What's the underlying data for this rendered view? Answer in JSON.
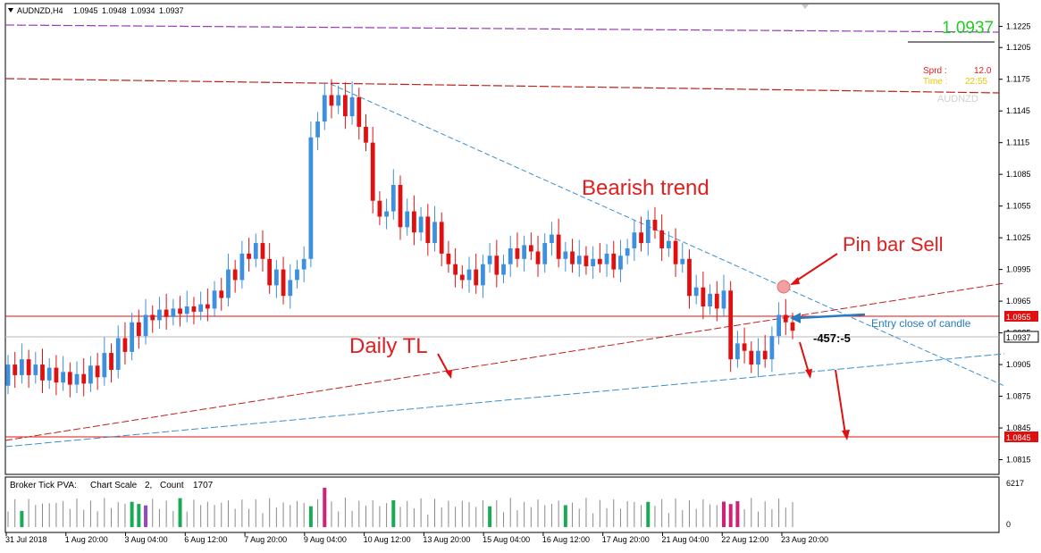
{
  "header": {
    "symbol_label": "AUDNZD,H4",
    "ohlc": [
      "1.0945",
      "1.0948",
      "1.0934",
      "1.0937"
    ]
  },
  "overlay": {
    "current_price": "1.0937",
    "spread_label": "Sprd :",
    "spread_value": "12.0",
    "time_label": "Time :",
    "time_value": "22:55",
    "watermark": "AUDNZD"
  },
  "annotations": {
    "bearish_trend": "Bearish trend",
    "pin_bar_sell": "Pin bar Sell",
    "daily_tl": "Daily TL",
    "entry_note": "Entry close of candle",
    "pips": "-457:-5"
  },
  "indicator": {
    "name": "Broker Tick PVA:",
    "scale_label": "Chart Scale",
    "scale_value": "2,",
    "count_label": "Count",
    "count_value": "1707",
    "max_label": "6217",
    "zero_label": "0"
  },
  "price_axis": {
    "ticks": [
      "1.1225",
      "1.1205",
      "1.1175",
      "1.1145",
      "1.1115",
      "1.1085",
      "1.1055",
      "1.1025",
      "1.0995",
      "1.0965",
      "1.0935",
      "1.0905",
      "1.0875",
      "1.0845",
      "1.0815"
    ],
    "marker_high": "1.0955",
    "marker_current": "1.0937",
    "marker_low": "1.0845"
  },
  "time_axis": {
    "labels": [
      "31 Jul 2018",
      "1 Aug 20:00",
      "3 Aug 04:00",
      "6 Aug 12:00",
      "7 Aug 20:00",
      "9 Aug 04:00",
      "10 Aug 12:00",
      "13 Aug 20:00",
      "15 Aug 04:00",
      "16 Aug 12:00",
      "17 Aug 20:00",
      "21 Aug 04:00",
      "22 Aug 12:00",
      "23 Aug 20:00"
    ]
  },
  "colors": {
    "bull": "#3d8fe0",
    "bear": "#e01010",
    "trend_red": "#c0201a",
    "trend_blue": "#3a8fd0",
    "purple": "#9a3ab8",
    "text_red": "#e02020",
    "text_blue": "#2a7ac0",
    "green": "#22cc22",
    "yellow": "#e8c800"
  },
  "chart_data": {
    "type": "candlestick",
    "title": "AUDNZD,H4",
    "ylim": [
      1.0807,
      1.1239
    ],
    "reference_lines": {
      "resistance_purple": 1.1215,
      "resistance_red": 1.1168,
      "entry_level": 1.0955,
      "current": 1.0937,
      "target": 1.0845
    },
    "trendlines": [
      {
        "name": "Bearish trend",
        "from": [
          0,
          1.1168
        ],
        "to": [
          1,
          1.0912
        ]
      },
      {
        "name": "Daily TL",
        "from": [
          0,
          1.0842
        ],
        "to": [
          1,
          1.0982
        ]
      }
    ],
    "candles": [
      [
        1.0885,
        1.0905
      ],
      [
        1.0905,
        1.0895
      ],
      [
        1.0895,
        1.091
      ],
      [
        1.091,
        1.0895
      ],
      [
        1.0895,
        1.0905
      ],
      [
        1.0905,
        1.089
      ],
      [
        1.089,
        1.0902
      ],
      [
        1.0902,
        1.0888
      ],
      [
        1.0888,
        1.0898
      ],
      [
        1.0898,
        1.0886
      ],
      [
        1.0886,
        1.0896
      ],
      [
        1.0896,
        1.0887
      ],
      [
        1.0887,
        1.0904
      ],
      [
        1.0904,
        1.0893
      ],
      [
        1.0893,
        1.0916
      ],
      [
        1.0916,
        1.09
      ],
      [
        1.09,
        1.093
      ],
      [
        1.093,
        1.0917
      ],
      [
        1.0917,
        1.0945
      ],
      [
        1.0945,
        1.0932
      ],
      [
        1.0932,
        1.0952
      ],
      [
        1.0952,
        1.0947
      ],
      [
        1.0947,
        1.0957
      ],
      [
        1.0957,
        1.095
      ],
      [
        1.095,
        1.0958
      ],
      [
        1.0958,
        1.0953
      ],
      [
        1.0953,
        1.096
      ],
      [
        1.096,
        1.0955
      ],
      [
        1.0955,
        1.0962
      ],
      [
        1.0962,
        1.0958
      ],
      [
        1.0958,
        1.0975
      ],
      [
        1.0975,
        1.0968
      ],
      [
        1.0968,
        1.0995
      ],
      [
        1.0995,
        1.0985
      ],
      [
        1.0985,
        1.101
      ],
      [
        1.101,
        1.1005
      ],
      [
        1.1005,
        1.102
      ],
      [
        1.102,
        1.1005
      ],
      [
        1.1005,
        1.098
      ],
      [
        1.098,
        1.0995
      ],
      [
        1.0995,
        1.097
      ],
      [
        1.097,
        1.0985
      ],
      [
        1.0985,
        1.0995
      ],
      [
        1.0995,
        1.1005
      ],
      [
        1.1005,
        1.112
      ],
      [
        1.112,
        1.1135
      ],
      [
        1.1135,
        1.116
      ],
      [
        1.116,
        1.115
      ],
      [
        1.115,
        1.116
      ],
      [
        1.116,
        1.114
      ],
      [
        1.114,
        1.1158
      ],
      [
        1.1158,
        1.113
      ],
      [
        1.113,
        1.1115
      ],
      [
        1.1115,
        1.106
      ],
      [
        1.106,
        1.1045
      ],
      [
        1.1045,
        1.105
      ],
      [
        1.105,
        1.1075
      ],
      [
        1.1075,
        1.1035
      ],
      [
        1.1035,
        1.105
      ],
      [
        1.105,
        1.103
      ],
      [
        1.103,
        1.1045
      ],
      [
        1.1045,
        1.102
      ],
      [
        1.102,
        1.104
      ],
      [
        1.104,
        1.101
      ],
      [
        1.101,
        1.1
      ],
      [
        1.1,
        1.099
      ],
      [
        1.099,
        1.0985
      ],
      [
        1.0985,
        1.0995
      ],
      [
        1.0995,
        1.098
      ],
      [
        1.098,
        1.1
      ],
      [
        1.1,
        1.1008
      ],
      [
        1.1008,
        1.099
      ],
      [
        1.099,
        1.1
      ],
      [
        1.1,
        1.1015
      ],
      [
        1.1015,
        1.1005
      ],
      [
        1.1005,
        1.1018
      ],
      [
        1.1018,
        1.1012
      ],
      [
        1.1012,
        1.1
      ],
      [
        1.1,
        1.102
      ],
      [
        1.102,
        1.1028
      ],
      [
        1.1028,
        1.1005
      ],
      [
        1.1005,
        1.1012
      ],
      [
        1.1012,
        1.1
      ],
      [
        1.1,
        1.1008
      ],
      [
        1.1008,
        1.0998
      ],
      [
        1.0998,
        1.1005
      ],
      [
        1.1005,
        1.1
      ],
      [
        1.1,
        1.101
      ],
      [
        1.101,
        1.0995
      ],
      [
        1.0995,
        1.1008
      ],
      [
        1.1008,
        1.1015
      ],
      [
        1.1015,
        1.103
      ],
      [
        1.103,
        1.102
      ],
      [
        1.102,
        1.1042
      ],
      [
        1.1042,
        1.1032
      ],
      [
        1.1032,
        1.1015
      ],
      [
        1.1015,
        1.1022
      ],
      [
        1.1022,
        1.1
      ],
      [
        1.1,
        1.1005
      ],
      [
        1.1005,
        1.097
      ],
      [
        1.097,
        1.0978
      ],
      [
        1.0978,
        1.096
      ],
      [
        1.096,
        1.0972
      ],
      [
        1.0972,
        1.0958
      ],
      [
        1.0958,
        1.0975
      ],
      [
        1.0975,
        1.091
      ],
      [
        1.091,
        1.0925
      ],
      [
        1.0925,
        1.0918
      ],
      [
        1.0918,
        1.0905
      ],
      [
        1.0905,
        1.0918
      ],
      [
        1.0918,
        1.091
      ],
      [
        1.091,
        1.0932
      ],
      [
        1.0932,
        1.0952
      ],
      [
        1.0952,
        1.0945
      ],
      [
        1.0945,
        1.0937
      ]
    ]
  }
}
